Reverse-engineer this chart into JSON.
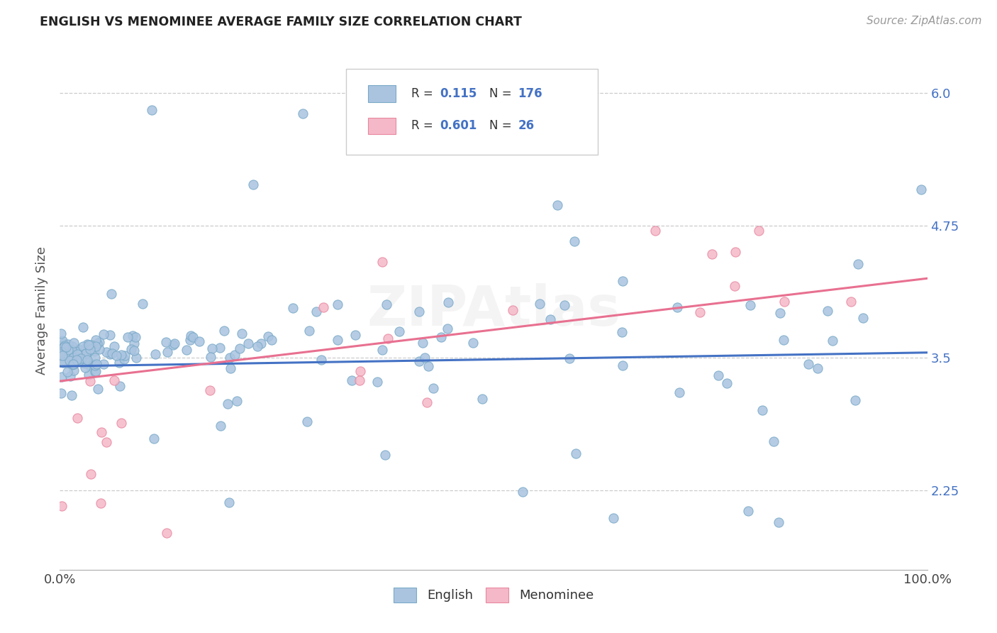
{
  "title": "ENGLISH VS MENOMINEE AVERAGE FAMILY SIZE CORRELATION CHART",
  "source": "Source: ZipAtlas.com",
  "ylabel": "Average Family Size",
  "xlim": [
    0,
    1
  ],
  "ylim": [
    1.5,
    6.4
  ],
  "yticks": [
    2.25,
    3.5,
    4.75,
    6.0
  ],
  "xticklabels": [
    "0.0%",
    "100.0%"
  ],
  "background_color": "#ffffff",
  "english_color": "#aac4e0",
  "english_edge_color": "#7aaac8",
  "menominee_color": "#f5b8c8",
  "menominee_edge_color": "#e888a0",
  "english_line_color": "#4472c4",
  "menominee_line_color": "#e87090",
  "legend_R1": "0.115",
  "legend_N1": "176",
  "legend_R2": "0.601",
  "legend_N2": "26",
  "english_trend_y0": 3.42,
  "english_trend_y1": 3.55,
  "menominee_trend_y0": 3.28,
  "menominee_trend_y1": 4.25
}
